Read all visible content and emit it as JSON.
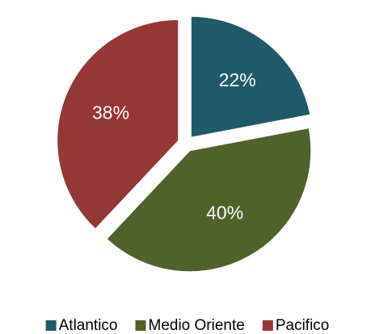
{
  "chart_data": {
    "type": "pie",
    "categories": [
      "Atlantico",
      "Medio Oriente",
      "Pacifico"
    ],
    "series": [
      {
        "values": [
          22,
          40,
          38
        ],
        "value_labels": [
          "22%",
          "40%",
          "38%"
        ],
        "colors": [
          "#1f5a6b",
          "#4f6228",
          "#953735"
        ]
      }
    ],
    "legend": "bottom"
  }
}
